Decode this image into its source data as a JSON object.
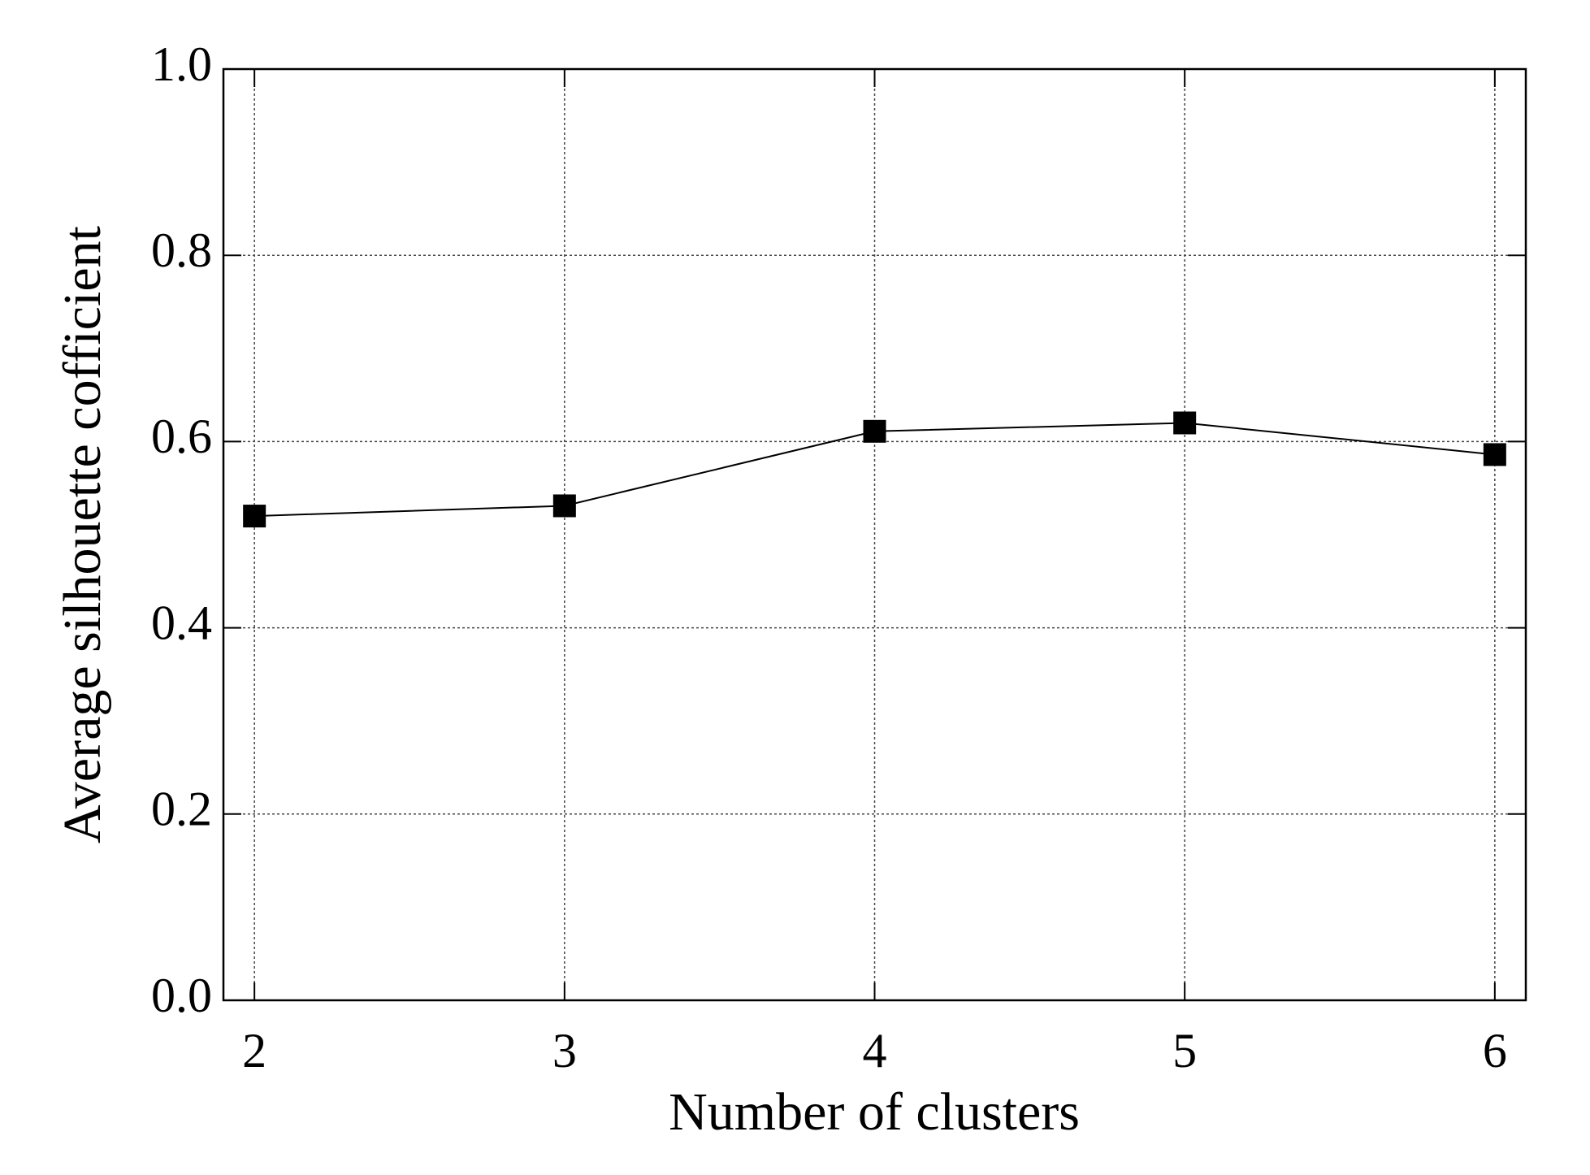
{
  "chart_data": {
    "type": "line",
    "xlabel": "Number of clusters",
    "ylabel": "Average silhouette cofficient",
    "x": [
      2,
      3,
      4,
      5,
      6
    ],
    "values": [
      0.52,
      0.531,
      0.611,
      0.62,
      0.586
    ],
    "color": "#000000",
    "marker": "square",
    "xlim": [
      1.9,
      6.1
    ],
    "ylim": [
      0,
      1
    ],
    "xticks": [
      2,
      3,
      4,
      5,
      6
    ],
    "yticks": [
      {
        "value": 0,
        "label": "0.0"
      },
      0.2,
      0.4,
      0.6,
      0.8,
      {
        "value": 1,
        "label": "1.0"
      }
    ],
    "grid": true
  }
}
